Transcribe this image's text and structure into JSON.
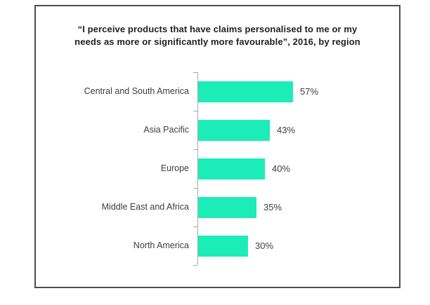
{
  "title": {
    "line1": "“I perceive products that have claims personalised to me or my",
    "line2": "needs as more or significantly more favourable”, 2016, by region"
  },
  "chart_data": {
    "type": "bar",
    "orientation": "horizontal",
    "title": "“I perceive products that have claims personalised to me or my needs as more or significantly more favourable”, 2016, by region",
    "categories": [
      "Central and South America",
      "Asia Pacific",
      "Europe",
      "Middle East and Africa",
      "North America"
    ],
    "values": [
      57,
      43,
      40,
      35,
      30
    ],
    "value_labels": [
      "57%",
      "43%",
      "40%",
      "35%",
      "30%"
    ],
    "unit": "%",
    "xlabel": "",
    "ylabel": "",
    "xlim": [
      0,
      60
    ],
    "grid": false,
    "legend": false,
    "colors": {
      "bar": "#1CEDB8",
      "axis": "#a8a8a8",
      "title_text": "#1f1f1f",
      "label_text": "#3d3d3d",
      "frame_border": "#4d4d4d",
      "page_bg": "#ffffff"
    }
  }
}
